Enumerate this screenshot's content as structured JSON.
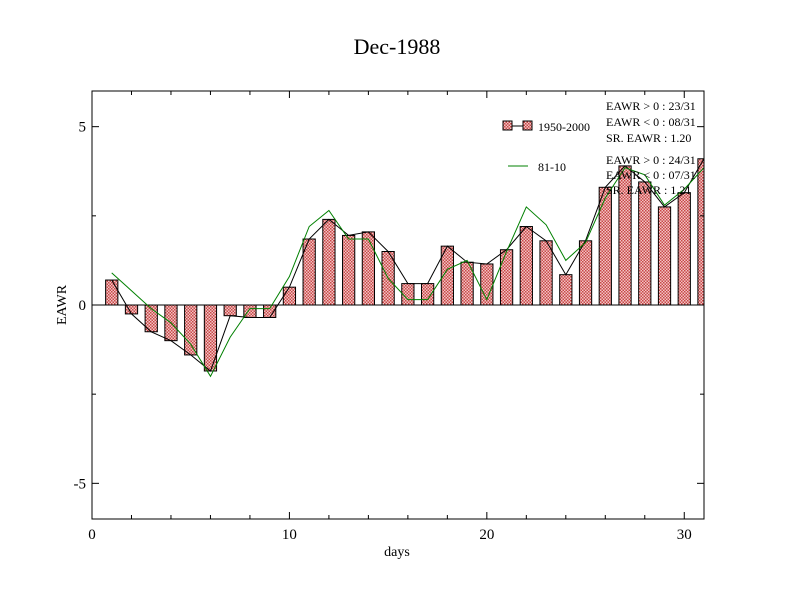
{
  "chart_data": {
    "type": "bar",
    "title": "Dec-1988",
    "xlabel": "days",
    "ylabel": "EAWR",
    "xlim": [
      0,
      31
    ],
    "ylim": [
      -6,
      6
    ],
    "x_ticks": [
      0,
      10,
      20,
      30
    ],
    "y_ticks": [
      -5,
      0,
      5
    ],
    "x_tick_labels": [
      "0",
      "10",
      "20",
      "30"
    ],
    "y_tick_labels": [
      "-5",
      "0",
      "5"
    ],
    "x": [
      1,
      2,
      3,
      4,
      5,
      6,
      7,
      8,
      9,
      10,
      11,
      12,
      13,
      14,
      15,
      16,
      17,
      18,
      19,
      20,
      21,
      22,
      23,
      24,
      25,
      26,
      27,
      28,
      29,
      30,
      31
    ],
    "series": [
      {
        "name": "1950-2000",
        "kind": "bar",
        "color": "#e8a0a0",
        "values": [
          0.7,
          -0.25,
          -0.75,
          -1.0,
          -1.4,
          -1.85,
          -0.3,
          -0.35,
          -0.35,
          0.5,
          1.85,
          2.4,
          1.95,
          2.05,
          1.5,
          0.6,
          0.6,
          1.65,
          1.2,
          1.15,
          1.55,
          2.2,
          1.8,
          0.85,
          1.8,
          3.3,
          3.9,
          3.45,
          2.75,
          3.15,
          4.1
        ]
      },
      {
        "name": "",
        "kind": "line",
        "color": "#000000",
        "values": [
          0.7,
          -0.25,
          -0.75,
          -1.0,
          -1.4,
          -1.85,
          -0.3,
          -0.35,
          -0.35,
          0.5,
          1.85,
          2.4,
          1.95,
          2.05,
          1.5,
          0.6,
          0.6,
          1.65,
          1.2,
          1.15,
          1.55,
          2.2,
          1.8,
          0.85,
          1.8,
          3.3,
          3.9,
          3.45,
          2.75,
          3.15,
          4.1
        ]
      },
      {
        "name": "81-10",
        "kind": "line",
        "color": "#008000",
        "values": [
          0.9,
          0.4,
          -0.1,
          -0.5,
          -1.1,
          -2.0,
          -0.9,
          -0.1,
          -0.1,
          0.8,
          2.2,
          2.65,
          1.85,
          1.85,
          0.75,
          0.15,
          0.15,
          1.0,
          1.25,
          0.15,
          1.5,
          2.75,
          2.25,
          1.25,
          1.75,
          3.0,
          3.85,
          3.65,
          2.8,
          3.25,
          3.85
        ]
      }
    ],
    "legend": [
      {
        "label": "1950-2000",
        "style": "bar-with-line",
        "color": "#e8a0a0"
      },
      {
        "label": "81-10",
        "style": "line",
        "color": "#008000"
      }
    ],
    "stats_block_1": [
      "EAWR > 0 : 23/31",
      "EAWR < 0 : 08/31",
      "SR. EAWR :  1.20"
    ],
    "stats_block_2": [
      "EAWR > 0 : 24/31",
      "EAWR < 0 : 07/31",
      "SR. EAWR :  1.21"
    ],
    "grid": false,
    "legend_position": "top-right"
  }
}
